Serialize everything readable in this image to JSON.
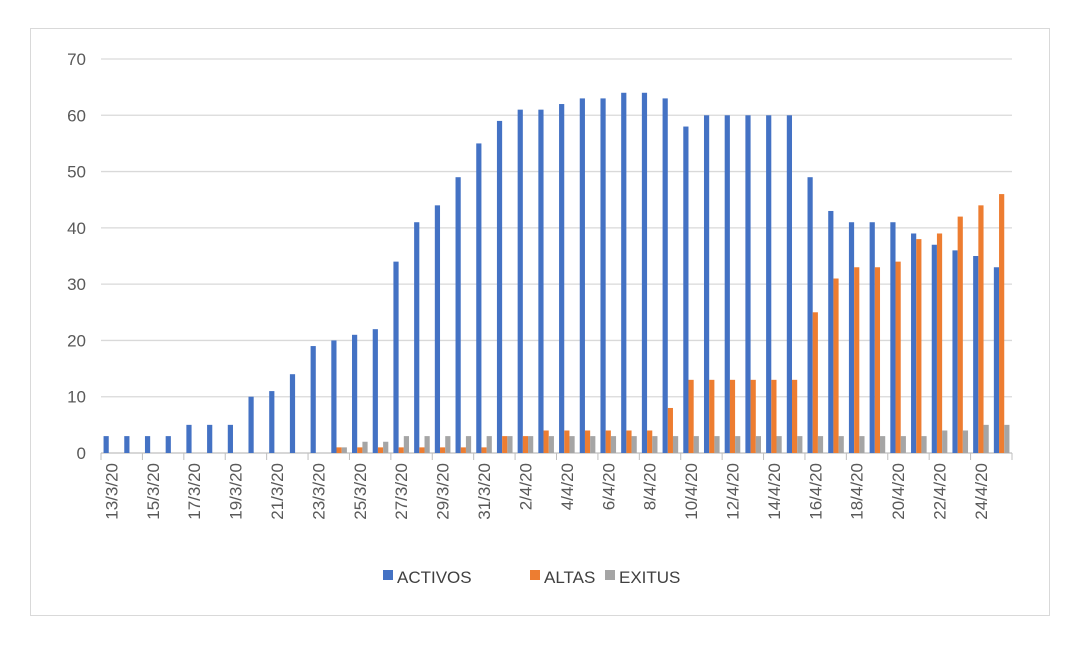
{
  "chart_data": {
    "type": "bar",
    "title": "",
    "xlabel": "",
    "ylabel": "",
    "ylim": [
      0,
      70
    ],
    "yticks": [
      0,
      10,
      20,
      30,
      40,
      50,
      60,
      70
    ],
    "grid": true,
    "legend_position": "bottom",
    "categories": [
      "13/3/20",
      "14/3/20",
      "15/3/20",
      "16/3/20",
      "17/3/20",
      "18/3/20",
      "19/3/20",
      "20/3/20",
      "21/3/20",
      "22/3/20",
      "23/3/20",
      "24/3/20",
      "25/3/20",
      "26/3/20",
      "27/3/20",
      "28/3/20",
      "29/3/20",
      "30/3/20",
      "31/3/20",
      "1/4/20",
      "2/4/20",
      "3/4/20",
      "4/4/20",
      "5/4/20",
      "6/4/20",
      "7/4/20",
      "8/4/20",
      "9/4/20",
      "10/4/20",
      "11/4/20",
      "12/4/20",
      "13/4/20",
      "14/4/20",
      "15/4/20",
      "16/4/20",
      "17/4/20",
      "18/4/20",
      "19/4/20",
      "20/4/20",
      "21/4/20",
      "22/4/20",
      "23/4/20",
      "24/4/20",
      "25/4/20"
    ],
    "shown_tick_labels": [
      "13/3/20",
      "15/3/20",
      "17/3/20",
      "19/3/20",
      "21/3/20",
      "23/3/20",
      "25/3/20",
      "27/3/20",
      "29/3/20",
      "31/3/20",
      "2/4/20",
      "4/4/20",
      "6/4/20",
      "8/4/20",
      "10/4/20",
      "12/4/20",
      "14/4/20",
      "16/4/20",
      "18/4/20",
      "20/4/20",
      "22/4/20",
      "24/4/20"
    ],
    "series": [
      {
        "name": "ACTIVOS",
        "color": "#4472c4",
        "values": [
          3,
          3,
          3,
          3,
          5,
          5,
          5,
          10,
          11,
          14,
          19,
          20,
          21,
          22,
          34,
          41,
          44,
          49,
          55,
          59,
          61,
          61,
          62,
          63,
          63,
          64,
          64,
          63,
          58,
          60,
          60,
          60,
          60,
          60,
          49,
          43,
          41,
          41,
          41,
          39,
          37,
          36,
          35,
          33
        ]
      },
      {
        "name": "ALTAS",
        "color": "#ed7d31",
        "values": [
          0,
          0,
          0,
          0,
          0,
          0,
          0,
          0,
          0,
          0,
          0,
          1,
          1,
          1,
          1,
          1,
          1,
          1,
          1,
          3,
          3,
          4,
          4,
          4,
          4,
          4,
          4,
          8,
          13,
          13,
          13,
          13,
          13,
          13,
          25,
          31,
          33,
          33,
          34,
          38,
          39,
          42,
          44,
          46
        ]
      },
      {
        "name": "EXITUS",
        "color": "#a5a5a5",
        "values": [
          0,
          0,
          0,
          0,
          0,
          0,
          0,
          0,
          0,
          0,
          0,
          1,
          2,
          2,
          3,
          3,
          3,
          3,
          3,
          3,
          3,
          3,
          3,
          3,
          3,
          3,
          3,
          3,
          3,
          3,
          3,
          3,
          3,
          3,
          3,
          3,
          3,
          3,
          3,
          3,
          4,
          4,
          5,
          5
        ]
      }
    ]
  }
}
